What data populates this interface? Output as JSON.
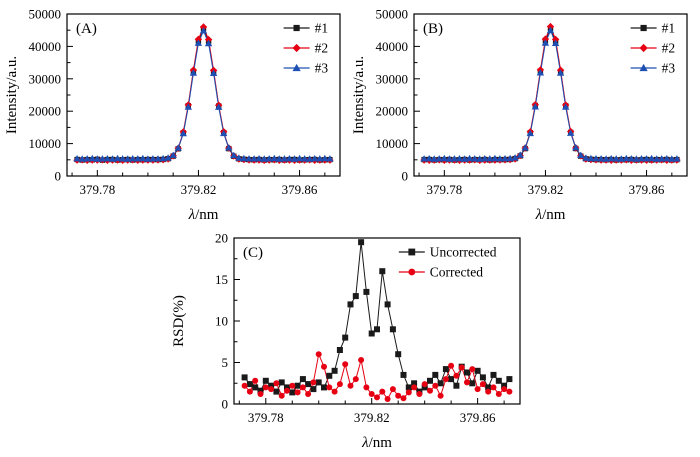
{
  "figure": {
    "background": "#ffffff"
  },
  "chart_data": [
    {
      "id": "A",
      "type": "line",
      "panel_label": "(A)",
      "xlabel": "λ/nm",
      "ylabel": "Intensity/a.u.",
      "xlim": [
        379.768,
        379.876
      ],
      "ylim": [
        0,
        50000
      ],
      "xticks": [
        379.78,
        379.82,
        379.86
      ],
      "xtick_labels": [
        "379.78",
        "379.82",
        "379.86"
      ],
      "xminor": [
        379.77,
        379.79,
        379.8,
        379.81,
        379.83,
        379.84,
        379.85,
        379.87
      ],
      "yticks": [
        0,
        10000,
        20000,
        30000,
        40000,
        50000
      ],
      "ytick_labels": [
        "0",
        "10000",
        "20000",
        "30000",
        "40000",
        "50000"
      ],
      "yminor": [
        5000,
        15000,
        25000,
        35000,
        45000
      ],
      "legend_pos": "top-right",
      "x": [
        379.772,
        379.774,
        379.776,
        379.778,
        379.78,
        379.782,
        379.784,
        379.786,
        379.788,
        379.79,
        379.792,
        379.794,
        379.796,
        379.798,
        379.8,
        379.802,
        379.804,
        379.806,
        379.808,
        379.81,
        379.812,
        379.814,
        379.816,
        379.818,
        379.82,
        379.822,
        379.824,
        379.826,
        379.828,
        379.83,
        379.832,
        379.834,
        379.836,
        379.838,
        379.84,
        379.842,
        379.844,
        379.846,
        379.848,
        379.85,
        379.852,
        379.854,
        379.856,
        379.858,
        379.86,
        379.862,
        379.864,
        379.866,
        379.868,
        379.87,
        379.872
      ],
      "series": [
        {
          "name": "#1",
          "color": "#1a1a1a",
          "marker": "square",
          "values": [
            5100,
            4950,
            5050,
            5000,
            5150,
            4900,
            5050,
            5100,
            4950,
            5000,
            5100,
            4950,
            5050,
            5000,
            5100,
            5050,
            5060,
            5120,
            5350,
            6150,
            8400,
            13300,
            21700,
            32300,
            41700,
            45500,
            41600,
            32200,
            21600,
            13400,
            8450,
            6100,
            5300,
            5150,
            5050,
            5000,
            5100,
            4950,
            5050,
            5000,
            5100,
            4950,
            5050,
            5100,
            4950,
            5000,
            5050,
            5100,
            4950,
            5000,
            5050
          ]
        },
        {
          "name": "#2",
          "color": "#e60012",
          "marker": "diamond",
          "values": [
            4900,
            5000,
            4850,
            4950,
            4900,
            5000,
            4850,
            4900,
            4950,
            4850,
            4900,
            5000,
            4850,
            4950,
            4900,
            4950,
            4980,
            5040,
            5280,
            6250,
            8550,
            13600,
            21950,
            32700,
            42200,
            46000,
            42100,
            32600,
            21850,
            13650,
            8600,
            6200,
            5250,
            5060,
            4980,
            4900,
            4950,
            4850,
            4900,
            5000,
            4850,
            4950,
            4900,
            4850,
            4950,
            4900,
            5000,
            4850,
            4900,
            4950,
            4900
          ]
        },
        {
          "name": "#3",
          "color": "#1e50b4",
          "marker": "triangle",
          "values": [
            5350,
            5250,
            5300,
            5400,
            5250,
            5300,
            5350,
            5250,
            5400,
            5300,
            5250,
            5350,
            5300,
            5400,
            5250,
            5300,
            5320,
            5380,
            5600,
            6400,
            8650,
            13100,
            21300,
            31800,
            41000,
            44800,
            40900,
            31700,
            21250,
            13150,
            8700,
            6350,
            5550,
            5400,
            5320,
            5300,
            5350,
            5250,
            5300,
            5400,
            5250,
            5300,
            5350,
            5250,
            5400,
            5300,
            5250,
            5350,
            5300,
            5400,
            5300
          ]
        }
      ]
    },
    {
      "id": "B",
      "type": "line",
      "panel_label": "(B)",
      "xlabel": "λ/nm",
      "ylabel": "Intensity/a.u.",
      "xlim": [
        379.768,
        379.876
      ],
      "ylim": [
        0,
        50000
      ],
      "xticks": [
        379.78,
        379.82,
        379.86
      ],
      "xtick_labels": [
        "379.78",
        "379.82",
        "379.86"
      ],
      "xminor": [
        379.77,
        379.79,
        379.8,
        379.81,
        379.83,
        379.84,
        379.85,
        379.87
      ],
      "yticks": [
        0,
        10000,
        20000,
        30000,
        40000,
        50000
      ],
      "ytick_labels": [
        "0",
        "10000",
        "20000",
        "30000",
        "40000",
        "50000"
      ],
      "yminor": [
        5000,
        15000,
        25000,
        35000,
        45000
      ],
      "legend_pos": "top-right",
      "x": [
        379.772,
        379.774,
        379.776,
        379.778,
        379.78,
        379.782,
        379.784,
        379.786,
        379.788,
        379.79,
        379.792,
        379.794,
        379.796,
        379.798,
        379.8,
        379.802,
        379.804,
        379.806,
        379.808,
        379.81,
        379.812,
        379.814,
        379.816,
        379.818,
        379.82,
        379.822,
        379.824,
        379.826,
        379.828,
        379.83,
        379.832,
        379.834,
        379.836,
        379.838,
        379.84,
        379.842,
        379.844,
        379.846,
        379.848,
        379.85,
        379.852,
        379.854,
        379.856,
        379.858,
        379.86,
        379.862,
        379.864,
        379.866,
        379.868,
        379.87,
        379.872
      ],
      "series": [
        {
          "name": "#1",
          "color": "#1a1a1a",
          "marker": "square",
          "values": [
            5050,
            5100,
            4950,
            5050,
            5000,
            5100,
            4950,
            5000,
            5100,
            4950,
            5050,
            5000,
            5100,
            4950,
            5050,
            5060,
            5070,
            5130,
            5360,
            6200,
            8450,
            13350,
            21750,
            32350,
            41750,
            45600,
            41650,
            32250,
            21650,
            13450,
            8500,
            6150,
            5320,
            5160,
            5060,
            5050,
            5000,
            5100,
            4950,
            5050,
            5000,
            5100,
            4950,
            5000,
            5100,
            4950,
            5050,
            5000,
            5100,
            4950,
            5050
          ]
        },
        {
          "name": "#2",
          "color": "#e60012",
          "marker": "diamond",
          "values": [
            4950,
            4850,
            4900,
            5000,
            4850,
            4950,
            4900,
            4850,
            4950,
            4900,
            5000,
            4850,
            4900,
            4950,
            4900,
            4960,
            4990,
            5050,
            5290,
            6300,
            8600,
            13650,
            22000,
            32750,
            42250,
            46100,
            42150,
            32650,
            21900,
            13700,
            8650,
            6250,
            5260,
            5070,
            4990,
            4950,
            4900,
            4850,
            4950,
            4900,
            5000,
            4850,
            4950,
            4900,
            4850,
            4950,
            4900,
            5000,
            4850,
            4900,
            4950
          ]
        },
        {
          "name": "#3",
          "color": "#1e50b4",
          "marker": "triangle",
          "values": [
            5300,
            5350,
            5250,
            5300,
            5400,
            5250,
            5300,
            5350,
            5250,
            5400,
            5300,
            5250,
            5350,
            5300,
            5400,
            5310,
            5330,
            5390,
            5610,
            6450,
            8700,
            13150,
            21350,
            31850,
            41050,
            44900,
            40950,
            31750,
            21300,
            13200,
            8750,
            6400,
            5560,
            5410,
            5330,
            5300,
            5250,
            5350,
            5300,
            5250,
            5400,
            5300,
            5250,
            5350,
            5300,
            5400,
            5250,
            5300,
            5350,
            5250,
            5300
          ]
        }
      ]
    },
    {
      "id": "C",
      "type": "line",
      "panel_label": "(C)",
      "xlabel": "λ/nm",
      "ylabel": "RSD(%)",
      "xlim": [
        379.768,
        379.876
      ],
      "ylim": [
        0,
        20
      ],
      "xticks": [
        379.78,
        379.82,
        379.86
      ],
      "xtick_labels": [
        "379.78",
        "379.82",
        "379.86"
      ],
      "xminor": [
        379.77,
        379.79,
        379.8,
        379.81,
        379.83,
        379.84,
        379.85,
        379.87
      ],
      "yticks": [
        0,
        5,
        10,
        15,
        20
      ],
      "ytick_labels": [
        "0",
        "5",
        "10",
        "15",
        "20"
      ],
      "yminor": [
        2.5,
        7.5,
        12.5,
        17.5
      ],
      "legend_pos": "top-right",
      "x": [
        379.772,
        379.774,
        379.776,
        379.778,
        379.78,
        379.782,
        379.784,
        379.786,
        379.788,
        379.79,
        379.792,
        379.794,
        379.796,
        379.798,
        379.8,
        379.802,
        379.804,
        379.806,
        379.808,
        379.81,
        379.812,
        379.814,
        379.816,
        379.818,
        379.82,
        379.822,
        379.824,
        379.826,
        379.828,
        379.83,
        379.832,
        379.834,
        379.836,
        379.838,
        379.84,
        379.842,
        379.844,
        379.846,
        379.848,
        379.85,
        379.852,
        379.854,
        379.856,
        379.858,
        379.86,
        379.862,
        379.864,
        379.866,
        379.868,
        379.87,
        379.872
      ],
      "series": [
        {
          "name": "Uncorrected",
          "color": "#1a1a1a",
          "marker": "square",
          "values": [
            3.2,
            2.4,
            2.0,
            1.6,
            2.8,
            2.2,
            1.5,
            2.6,
            2.0,
            1.4,
            2.2,
            3.0,
            2.4,
            1.8,
            2.6,
            2.0,
            3.4,
            4.0,
            6.5,
            8.0,
            12.0,
            13.0,
            19.5,
            13.5,
            8.5,
            9.0,
            16.0,
            12.0,
            9.0,
            6.0,
            3.5,
            2.0,
            2.5,
            1.5,
            2.0,
            2.8,
            3.5,
            2.5,
            4.2,
            3.0,
            2.2,
            4.5,
            3.8,
            2.5,
            4.0,
            3.2,
            2.0,
            3.5,
            2.8,
            2.2,
            3.0
          ]
        },
        {
          "name": "Corrected",
          "color": "#e60012",
          "marker": "circle",
          "values": [
            2.2,
            1.5,
            2.8,
            1.2,
            2.0,
            1.8,
            2.5,
            1.0,
            1.6,
            2.2,
            1.4,
            2.0,
            1.2,
            2.6,
            6.0,
            4.5,
            2.0,
            1.5,
            2.4,
            4.8,
            2.2,
            3.0,
            5.3,
            2.0,
            1.2,
            0.8,
            1.5,
            0.6,
            1.8,
            1.0,
            0.7,
            1.4,
            2.0,
            1.2,
            2.4,
            1.6,
            2.2,
            1.0,
            3.0,
            4.6,
            3.4,
            4.4,
            2.6,
            4.2,
            1.8,
            2.4,
            1.5,
            2.0,
            1.2,
            1.8,
            1.5
          ]
        }
      ]
    }
  ]
}
